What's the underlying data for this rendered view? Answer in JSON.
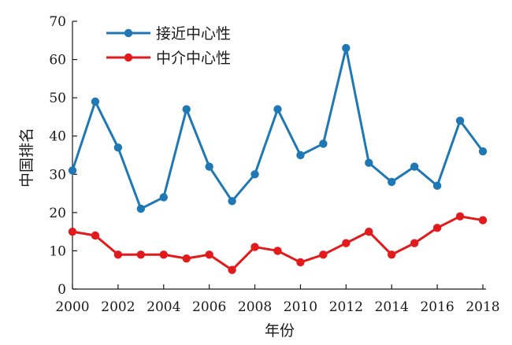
{
  "chart_data": {
    "type": "line",
    "x": [
      2000,
      2001,
      2002,
      2003,
      2004,
      2005,
      2006,
      2007,
      2008,
      2009,
      2010,
      2011,
      2012,
      2013,
      2014,
      2015,
      2016,
      2017,
      2018
    ],
    "series": [
      {
        "name": "接近中心性",
        "color": "#1f78b4",
        "values": [
          31,
          49,
          37,
          21,
          24,
          47,
          32,
          23,
          30,
          47,
          35,
          38,
          63,
          33,
          28,
          32,
          27,
          44,
          36
        ]
      },
      {
        "name": "中介中心性",
        "color": "#e31a1c",
        "values": [
          15,
          14,
          9,
          9,
          9,
          8,
          9,
          5,
          11,
          10,
          7,
          9,
          12,
          15,
          9,
          12,
          16,
          19,
          18
        ]
      }
    ],
    "xlabel": "年份",
    "ylabel": "中国排名",
    "xlim": [
      2000,
      2018
    ],
    "ylim": [
      0,
      70
    ],
    "xticks": [
      "2000",
      "2002",
      "2004",
      "2006",
      "2008",
      "2010",
      "2012",
      "2014",
      "2016",
      "2018"
    ],
    "yticks": [
      "0",
      "10",
      "20",
      "30",
      "40",
      "50",
      "60",
      "70"
    ],
    "legend": "top-left",
    "grid": false
  }
}
